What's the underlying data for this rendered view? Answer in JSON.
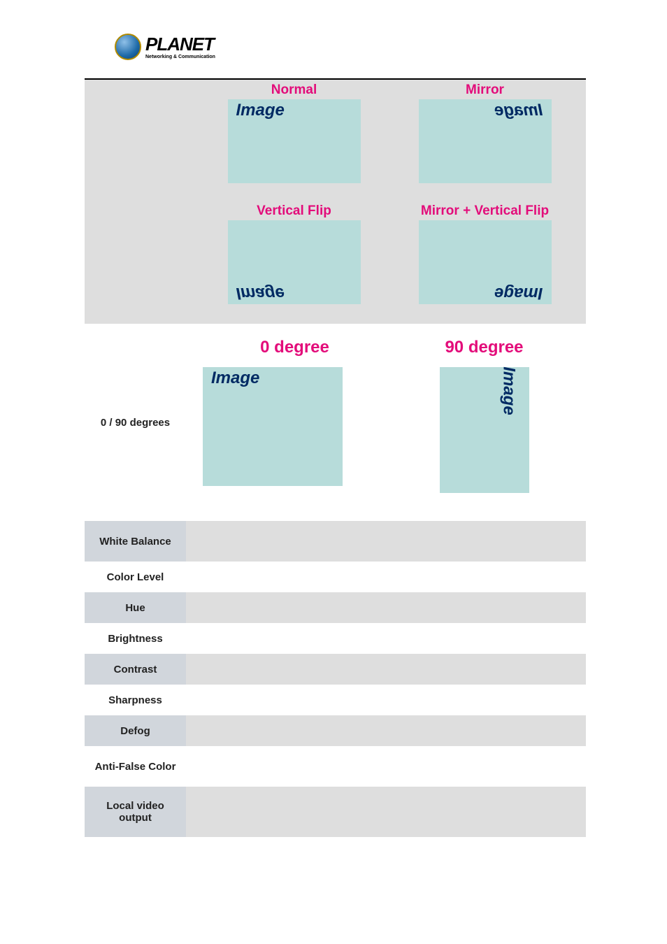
{
  "brand": {
    "name": "PLANET",
    "tagline": "Networking & Communication"
  },
  "flip_section": {
    "items": [
      {
        "title": "Normal",
        "word": "Image",
        "transform": "none",
        "pos": "tl"
      },
      {
        "title": "Mirror",
        "word": "Image",
        "transform": "mirror",
        "pos": "tr"
      },
      {
        "title": "Vertical Flip",
        "word": "Image",
        "transform": "vflip",
        "pos": "bl"
      },
      {
        "title": "Mirror + Vertical Flip",
        "word": "Image",
        "transform": "both",
        "pos": "br"
      }
    ],
    "title_color": "#e30c7a",
    "box_color": "#b7dcda",
    "word_color": "#002a63"
  },
  "degree_section": {
    "label": "0 / 90 degrees",
    "col0": {
      "title": "0 degree",
      "word": "Image"
    },
    "col90": {
      "title": "90 degree",
      "word": "Image"
    },
    "title_color": "#e30c7a",
    "box_color": "#b7dcda"
  },
  "settings": [
    {
      "label": "White Balance",
      "tall": true
    },
    {
      "label": "Color Level",
      "tall": false
    },
    {
      "label": "Hue",
      "tall": false
    },
    {
      "label": "Brightness",
      "tall": false
    },
    {
      "label": "Contrast",
      "tall": false
    },
    {
      "label": "Sharpness",
      "tall": false
    },
    {
      "label": "Defog",
      "tall": false
    },
    {
      "label": "Anti-False Color",
      "tall": true
    },
    {
      "label": "Local video output",
      "tall": true,
      "taller": true
    }
  ],
  "colors": {
    "row_shaded_label": "#d1d6dc",
    "row_shaded_content": "#dedede",
    "row_plain": "#ffffff"
  }
}
